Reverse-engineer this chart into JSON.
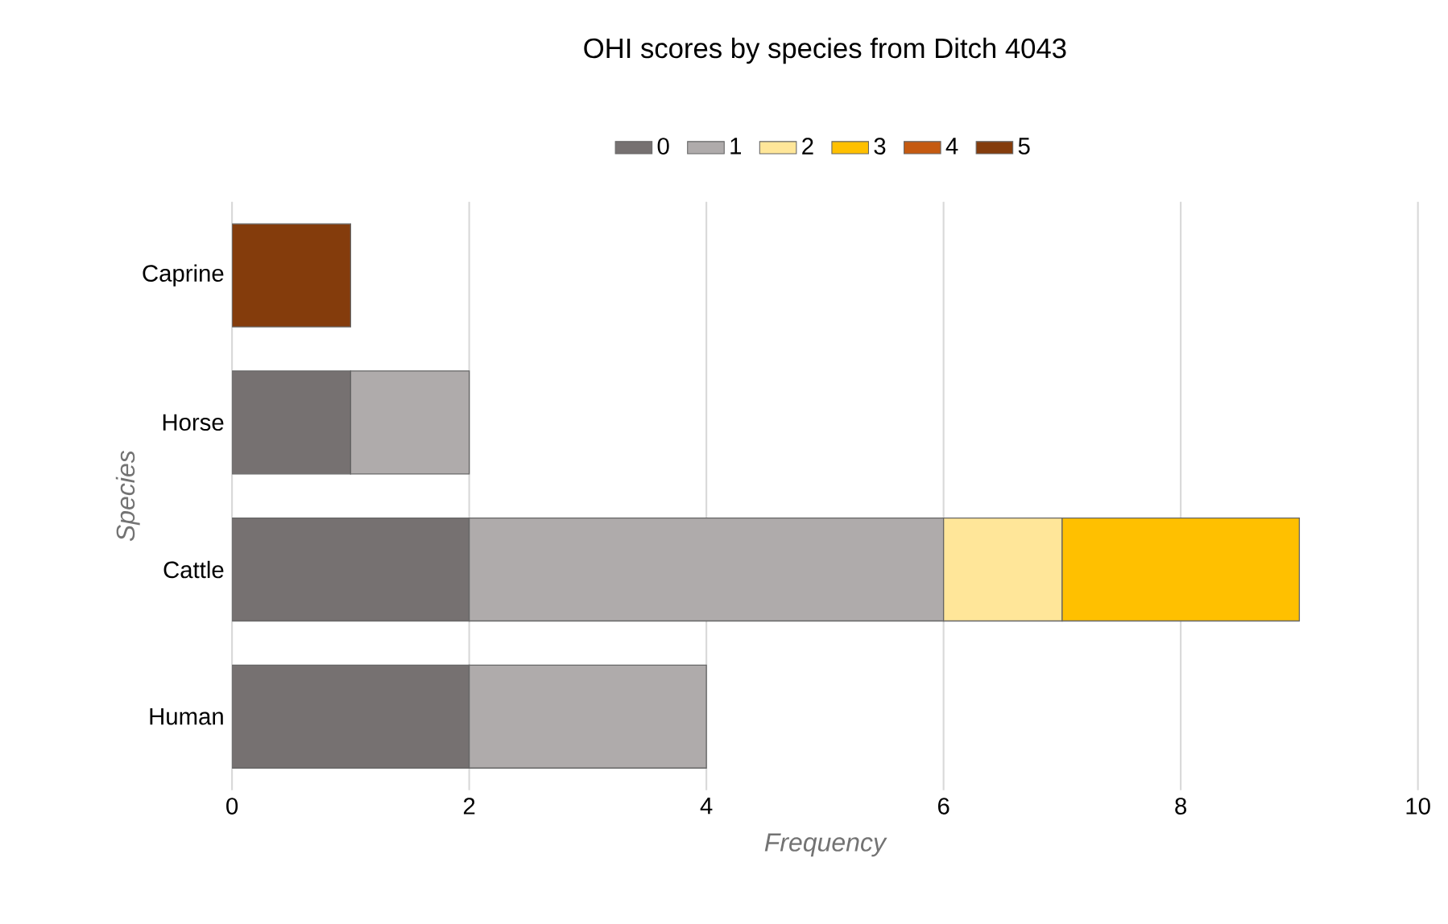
{
  "chart_data": {
    "type": "bar",
    "orientation": "horizontal",
    "stacked": true,
    "title": "OHI scores by species from Ditch 4043",
    "xlabel": "Frequency",
    "ylabel": "Species",
    "categories": [
      "Caprine",
      "Horse",
      "Cattle",
      "Human"
    ],
    "series": [
      {
        "name": "0",
        "color": "#767171",
        "values": [
          0,
          1,
          2,
          2
        ]
      },
      {
        "name": "1",
        "color": "#afabab",
        "values": [
          0,
          1,
          4,
          2
        ]
      },
      {
        "name": "2",
        "color": "#ffe699",
        "values": [
          0,
          0,
          1,
          0
        ]
      },
      {
        "name": "3",
        "color": "#ffc000",
        "values": [
          0,
          0,
          2,
          0
        ]
      },
      {
        "name": "4",
        "color": "#c55a11",
        "values": [
          0,
          0,
          0,
          0
        ]
      },
      {
        "name": "5",
        "color": "#843c0c",
        "values": [
          1,
          0,
          0,
          0
        ]
      }
    ],
    "xlim": [
      0,
      10
    ],
    "xticks": [
      0,
      2,
      4,
      6,
      8,
      10
    ],
    "grid": "x",
    "legend": "top"
  }
}
